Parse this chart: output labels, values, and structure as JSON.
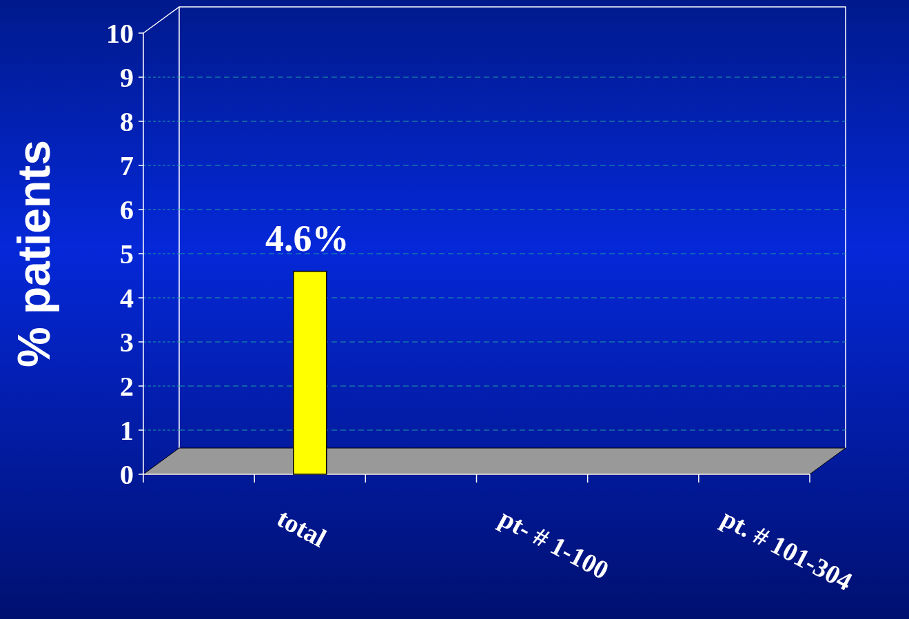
{
  "chart_data": {
    "type": "bar",
    "ylabel": "% patients",
    "categories": [
      null,
      "total",
      null,
      "pt- # 1-100",
      null,
      "pt. # 101-304"
    ],
    "values": [
      null,
      4.6,
      null,
      null,
      null,
      null
    ],
    "color": "#ffff00",
    "value_labels": [
      null,
      "4.6%",
      null,
      null,
      null,
      null
    ],
    "ylim": [
      0,
      10
    ],
    "yticks": [
      0,
      1,
      2,
      3,
      4,
      5,
      6,
      7,
      8,
      9,
      10
    ],
    "grid": "y"
  }
}
